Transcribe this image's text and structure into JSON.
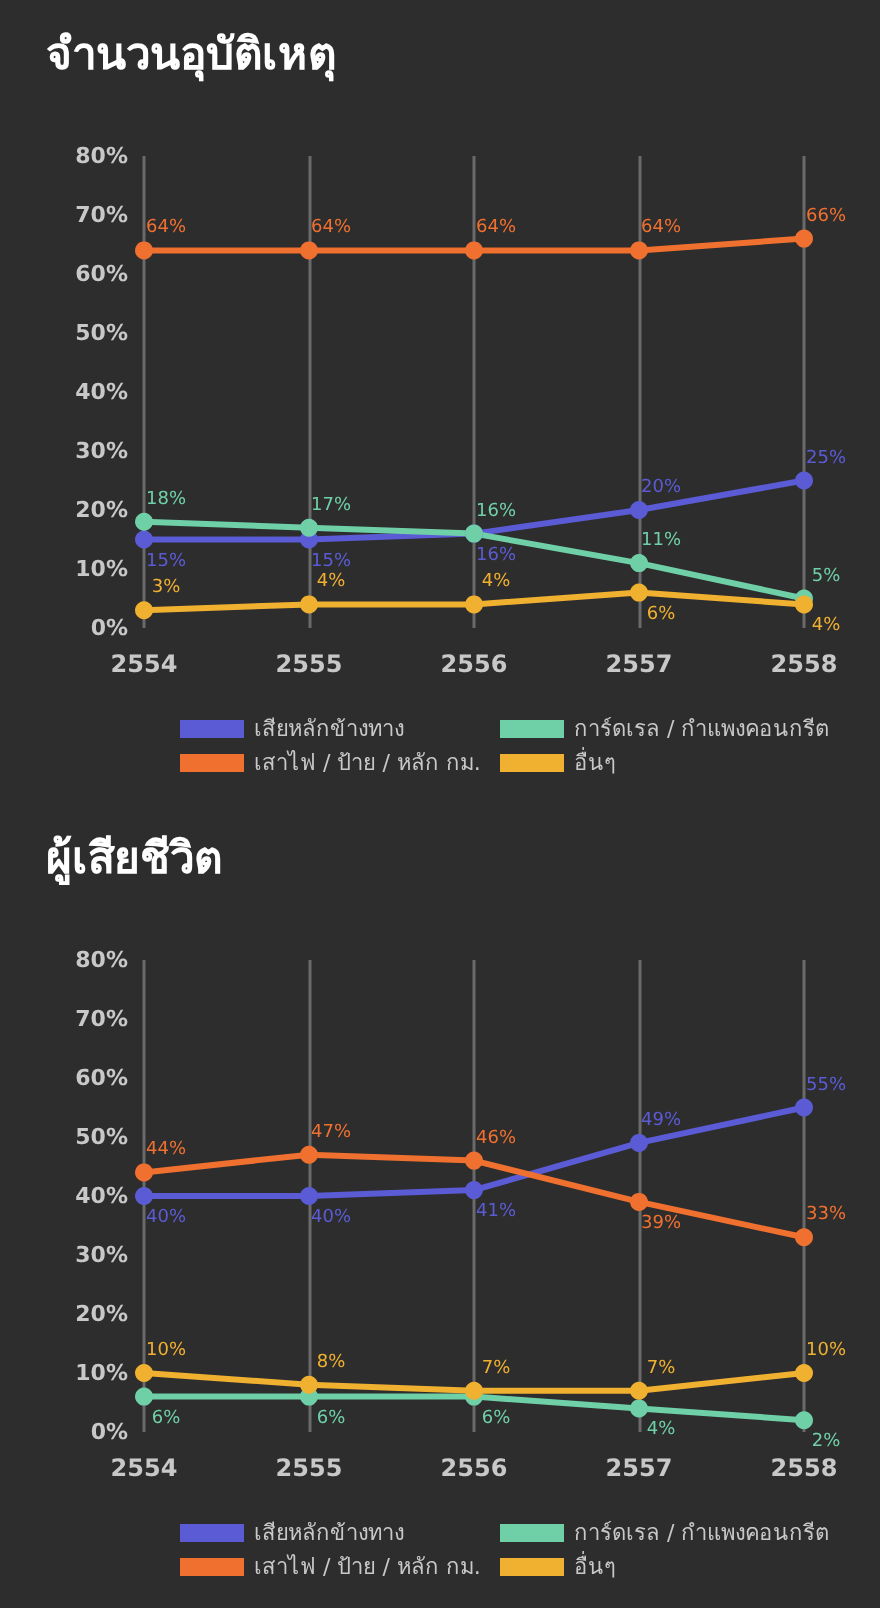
{
  "chart_data": [
    {
      "type": "line",
      "title": "จำนวนอุบัติเหตุ",
      "categories": [
        "2554",
        "2555",
        "2556",
        "2557",
        "2558"
      ],
      "series": [
        {
          "name": "เสียหลักข้างทาง",
          "color": "#5b5bd6",
          "values": [
            15,
            15,
            16,
            20,
            25
          ],
          "value_labels": [
            "15%",
            "15%",
            "16%",
            "20%",
            "25%"
          ]
        },
        {
          "name": "การ์ดเรล / กำแพงคอนกรีต",
          "color": "#6fd0a8",
          "values": [
            18,
            17,
            16,
            11,
            5
          ],
          "value_labels": [
            "18%",
            "17%",
            "16%",
            "11%",
            "5%"
          ]
        },
        {
          "name": "เสาไฟ / ป้าย / หลัก กม.",
          "color": "#f07030",
          "values": [
            64,
            64,
            64,
            64,
            66
          ],
          "value_labels": [
            "64%",
            "64%",
            "64%",
            "64%",
            "66%"
          ]
        },
        {
          "name": "อื่นๆ",
          "color": "#f0b030",
          "values": [
            3,
            4,
            4,
            6,
            4
          ],
          "value_labels": [
            "3%",
            "4%",
            "4%",
            "6%",
            "4%"
          ]
        }
      ],
      "ylim": [
        0,
        80
      ],
      "yticks": [
        {
          "value": 0,
          "label": "0%"
        },
        {
          "value": 10,
          "label": "10%"
        },
        {
          "value": 20,
          "label": "20%"
        },
        {
          "value": 30,
          "label": "30%"
        },
        {
          "value": 40,
          "label": "40%"
        },
        {
          "value": 50,
          "label": "50%"
        },
        {
          "value": 60,
          "label": "60%"
        },
        {
          "value": 70,
          "label": "70%"
        },
        {
          "value": 80,
          "label": "80%"
        }
      ],
      "grid": "x",
      "legend": "bottom",
      "marker": "circle",
      "line_style": "solid"
    },
    {
      "type": "line",
      "title": "ผู้เสียชีวิต",
      "categories": [
        "2554",
        "2555",
        "2556",
        "2557",
        "2558"
      ],
      "series": [
        {
          "name": "เสียหลักข้างทาง",
          "color": "#5b5bd6",
          "values": [
            40,
            40,
            41,
            49,
            55
          ],
          "value_labels": [
            "40%",
            "40%",
            "41%",
            "49%",
            "55%"
          ]
        },
        {
          "name": "การ์ดเรล / กำแพงคอนกรีต",
          "color": "#6fd0a8",
          "values": [
            6,
            6,
            6,
            4,
            2
          ],
          "value_labels": [
            "6%",
            "6%",
            "6%",
            "4%",
            "2%"
          ]
        },
        {
          "name": "เสาไฟ / ป้าย / หลัก กม.",
          "color": "#f07030",
          "values": [
            44,
            47,
            46,
            39,
            33
          ],
          "value_labels": [
            "44%",
            "47%",
            "46%",
            "39%",
            "33%"
          ]
        },
        {
          "name": "อื่นๆ",
          "color": "#f0b030",
          "values": [
            10,
            8,
            7,
            7,
            10
          ],
          "value_labels": [
            "10%",
            "8%",
            "7%",
            "7%",
            "10%"
          ]
        }
      ],
      "ylim": [
        0,
        80
      ],
      "yticks": [
        {
          "value": 0,
          "label": "0%"
        },
        {
          "value": 10,
          "label": "10%"
        },
        {
          "value": 20,
          "label": "20%"
        },
        {
          "value": 30,
          "label": "30%"
        },
        {
          "value": 40,
          "label": "40%"
        },
        {
          "value": 50,
          "label": "50%"
        },
        {
          "value": 60,
          "label": "60%"
        },
        {
          "value": 70,
          "label": "70%"
        },
        {
          "value": 80,
          "label": "80%"
        }
      ],
      "grid": "x",
      "legend": "bottom",
      "marker": "circle",
      "line_style": "solid"
    }
  ]
}
